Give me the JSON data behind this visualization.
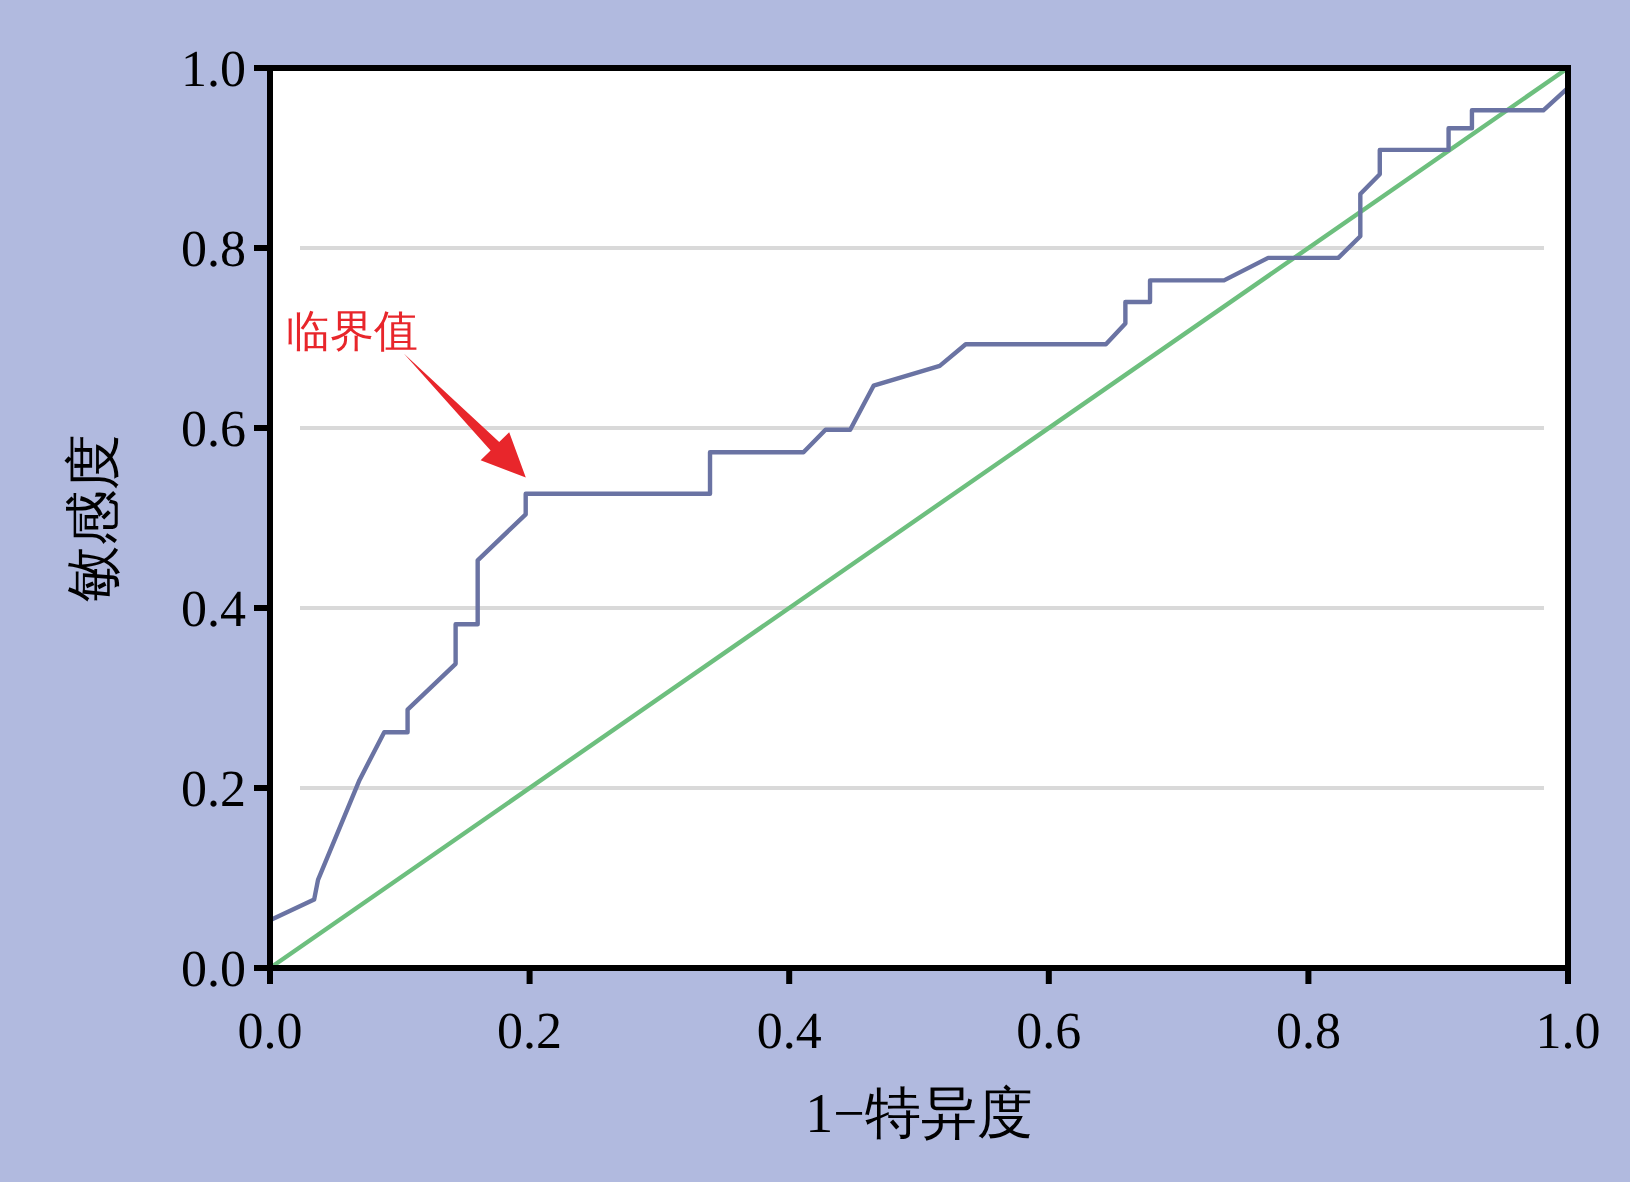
{
  "chart_data": {
    "type": "line",
    "xlabel": "1−特异度",
    "ylabel": "敏感度",
    "annotations": [
      "临界值"
    ],
    "xlim": [
      0,
      1
    ],
    "ylim": [
      0,
      1
    ],
    "xticks": [
      {
        "value": 0,
        "label": "0.0"
      },
      0.2,
      0.4,
      0.6,
      0.8,
      {
        "value": 1,
        "label": "1.0"
      }
    ],
    "yticks": [
      {
        "value": 0,
        "label": "0.0"
      },
      0.2,
      0.4,
      0.6,
      0.8,
      {
        "value": 1,
        "label": "1.0"
      }
    ],
    "grid": "y",
    "series": [
      {
        "color": "#6a73a3",
        "x": [
          0,
          0.034,
          0.037,
          0.069,
          0.088,
          0.106,
          0.106,
          0.143,
          0.143,
          0.16,
          0.16,
          0.197,
          0.197,
          0.339,
          0.339,
          0.411,
          0.428,
          0.447,
          0.465,
          0.516,
          0.536,
          0.644,
          0.659,
          0.659,
          0.678,
          0.678,
          0.735,
          0.769,
          0.823,
          0.84,
          0.84,
          0.855,
          0.855,
          0.908,
          0.908,
          0.926,
          0.926,
          0.981,
          1
        ],
        "values": [
          0.053,
          0.076,
          0.098,
          0.209,
          0.262,
          0.262,
          0.287,
          0.338,
          0.382,
          0.382,
          0.453,
          0.504,
          0.527,
          0.527,
          0.573,
          0.573,
          0.598,
          0.598,
          0.647,
          0.669,
          0.693,
          0.693,
          0.716,
          0.74,
          0.74,
          0.764,
          0.764,
          0.789,
          0.789,
          0.813,
          0.86,
          0.882,
          0.909,
          0.909,
          0.933,
          0.933,
          0.953,
          0.953,
          0.978
        ]
      },
      {
        "color": "#6dbf7e",
        "x": [
          0,
          1
        ],
        "values": [
          0,
          1
        ]
      }
    ]
  }
}
